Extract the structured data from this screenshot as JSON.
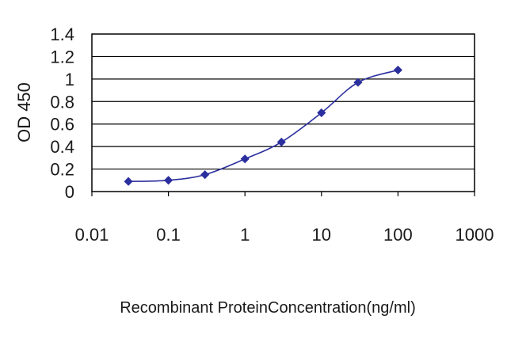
{
  "chart_data": {
    "type": "line",
    "title": "",
    "xlabel": "Recombinant ProteinConcentration(ng/ml)",
    "ylabel": "OD 450",
    "x_scale": "log",
    "xlim": [
      0.01,
      1000
    ],
    "ylim": [
      0,
      1.4
    ],
    "x_ticks": [
      "0.01",
      "0.1",
      "1",
      "10",
      "100",
      "1000"
    ],
    "y_ticks": [
      "0",
      "0.2",
      "0.4",
      "0.6",
      "0.8",
      "1",
      "1.2",
      "1.4"
    ],
    "grid": "horizontal",
    "legend": "none",
    "series": [
      {
        "color": "#2b2f9e",
        "marker": "diamond",
        "points": [
          {
            "x": 0.03,
            "y": 0.09
          },
          {
            "x": 0.1,
            "y": 0.1
          },
          {
            "x": 0.3,
            "y": 0.15
          },
          {
            "x": 1,
            "y": 0.29
          },
          {
            "x": 3,
            "y": 0.44
          },
          {
            "x": 10,
            "y": 0.7
          },
          {
            "x": 30,
            "y": 0.97
          },
          {
            "x": 100,
            "y": 1.08
          }
        ]
      }
    ]
  }
}
